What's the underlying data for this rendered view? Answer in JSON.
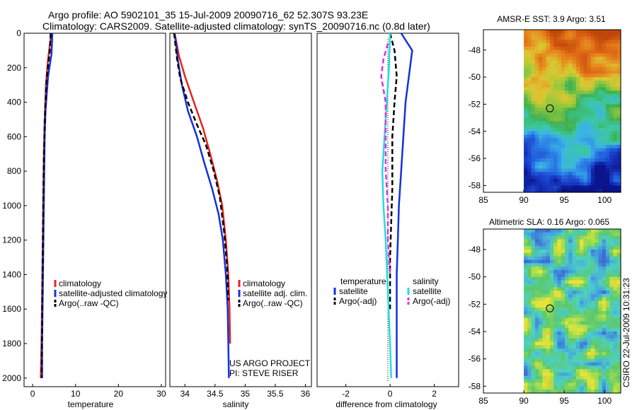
{
  "header": {
    "line1": "Argo profile: AO 5902101_35 15-Jul-2009 20090716_62 52.307S 93.23E",
    "line2": "Climatology: CARS2009. Satellite-adjusted climatology: synTS_20090716.nc (0.8d later)"
  },
  "footer": {
    "credit_vertical": "CSIRO 22-Jul-2009 10:31:23"
  },
  "colors": {
    "climatology": "#e8231c",
    "satellite": "#1330e0",
    "argo": "#000000",
    "sat_salinity": "#22dede",
    "argo_salinity_adj": "#e030e0"
  },
  "chart_data": [
    {
      "id": "temperature",
      "type": "line",
      "xlabel": "temperature",
      "ylabel": "",
      "xlim": [
        -2,
        31
      ],
      "ylim": [
        2050,
        0
      ],
      "xticks": [
        0,
        10,
        20,
        30
      ],
      "yticks": [
        0,
        200,
        400,
        600,
        800,
        1000,
        1200,
        1400,
        1600,
        1800,
        2000
      ],
      "legend": [
        "climatology",
        "satellite-adjusted climatology",
        "Argo(..raw -QC)"
      ],
      "series": [
        {
          "name": "climatology",
          "style": "solid",
          "color": "#e8231c",
          "x": [
            4.3,
            4.1,
            3.6,
            3.1,
            2.8,
            2.6,
            2.5,
            2.4,
            2.3,
            2.2,
            2.1,
            1.9
          ],
          "y": [
            0,
            50,
            150,
            300,
            500,
            700,
            900,
            1100,
            1300,
            1500,
            1750,
            2000
          ]
        },
        {
          "name": "satellite-adjusted climatology",
          "style": "solid",
          "color": "#1330e0",
          "x": [
            4.6,
            4.5,
            4.4,
            3.6,
            3.0,
            2.8,
            2.7,
            2.6,
            2.5,
            2.4,
            2.3,
            2.2,
            2.2
          ],
          "y": [
            0,
            60,
            120,
            250,
            450,
            600,
            800,
            1000,
            1200,
            1400,
            1600,
            1800,
            2000
          ]
        },
        {
          "name": "Argo(..raw -QC)",
          "style": "dash",
          "color": "#000000",
          "x": [
            4.2,
            4.0,
            3.3,
            3.0,
            2.8,
            2.6,
            2.5,
            2.4,
            2.3,
            2.2,
            2.1
          ],
          "y": [
            0,
            100,
            250,
            400,
            550,
            750,
            950,
            1200,
            1450,
            1700,
            2000
          ]
        }
      ]
    },
    {
      "id": "salinity",
      "type": "line",
      "xlabel": "salinity",
      "ylabel": "",
      "xlim": [
        33.75,
        36.1
      ],
      "ylim": [
        2050,
        0
      ],
      "xticks": [
        34,
        34.5,
        35,
        35.5,
        36
      ],
      "legend": [
        "climatology",
        "satellite adj. clim.",
        "Argo(..raw -QC)"
      ],
      "annotations": [
        "US ARGO PROJECT",
        "PI: STEVE RISER"
      ],
      "series": [
        {
          "name": "climatology",
          "style": "solid",
          "color": "#e8231c",
          "x": [
            33.83,
            33.9,
            34.0,
            34.15,
            34.3,
            34.42,
            34.53,
            34.62,
            34.68,
            34.72,
            34.74,
            34.75
          ],
          "y": [
            0,
            130,
            250,
            400,
            550,
            700,
            850,
            1000,
            1200,
            1400,
            1600,
            1800
          ]
        },
        {
          "name": "satellite adj. clim.",
          "style": "solid",
          "color": "#1330e0",
          "x": [
            33.82,
            33.85,
            33.88,
            33.95,
            34.05,
            34.2,
            34.32,
            34.45,
            34.56,
            34.63,
            34.68,
            34.71,
            34.72,
            34.73
          ],
          "y": [
            0,
            50,
            150,
            300,
            450,
            600,
            750,
            900,
            1050,
            1200,
            1400,
            1600,
            1800,
            2000
          ]
        },
        {
          "name": "Argo(..raw -QC)",
          "style": "dash",
          "color": "#000000",
          "x": [
            33.82,
            33.87,
            33.92,
            34.05,
            34.2,
            34.35,
            34.48,
            34.58,
            34.65,
            34.7,
            34.72
          ],
          "y": [
            0,
            150,
            260,
            400,
            530,
            650,
            800,
            950,
            1150,
            1350,
            1550
          ]
        }
      ]
    },
    {
      "id": "difference",
      "type": "line",
      "xlabel": "difference from climatology",
      "ylabel": "",
      "xlim": [
        -3.3,
        3.1
      ],
      "ylim": [
        2050,
        0
      ],
      "xticks": [
        -2,
        0,
        2
      ],
      "legend_groups": [
        {
          "title": "temperature",
          "entries": [
            "satellite",
            "Argo(-adj)"
          ]
        },
        {
          "title": "salinity",
          "entries": [
            "satellite",
            "Argo(-adj)"
          ]
        }
      ],
      "series": [
        {
          "name": "temperature satellite",
          "style": "solid",
          "color": "#1330e0",
          "x": [
            0.5,
            0.9,
            1.0,
            0.7,
            0.6,
            0.5,
            0.4,
            0.35,
            0.3,
            0.3,
            0.3
          ],
          "y": [
            0,
            80,
            100,
            400,
            600,
            800,
            1000,
            1200,
            1400,
            1700,
            2000
          ]
        },
        {
          "name": "temperature Argo(-adj)",
          "style": "dash",
          "color": "#000000",
          "x": [
            0.0,
            0.2,
            0.3,
            0.2,
            0.1,
            0.1,
            0.0,
            0.0
          ],
          "y": [
            0,
            100,
            250,
            400,
            600,
            900,
            1300,
            1600
          ]
        },
        {
          "name": "salinity satellite",
          "style": "solid",
          "color": "#22dede",
          "x": [
            0.0,
            -0.05,
            -0.15,
            -0.25,
            -0.35,
            -0.3,
            -0.2,
            -0.1,
            0.0,
            0.05
          ],
          "y": [
            0,
            200,
            400,
            600,
            800,
            1000,
            1200,
            1500,
            1800,
            2000
          ]
        },
        {
          "name": "salinity Argo(-adj)",
          "style": "dash",
          "color": "#e030e0",
          "x": [
            -0.1,
            -0.3,
            -0.4,
            -0.2,
            -0.2,
            -0.2,
            -0.1,
            -0.1,
            0.0
          ],
          "y": [
            60,
            150,
            250,
            400,
            600,
            800,
            1000,
            1200,
            1400
          ]
        }
      ]
    },
    {
      "id": "sst-map",
      "type": "heatmap",
      "title": "AMSR-E SST: 3.9 Argo: 3.51",
      "xlim": [
        85,
        102
      ],
      "ylim": [
        -58.5,
        -46.5
      ],
      "xticks": [
        85,
        90,
        95,
        100
      ],
      "yticks": [
        -48,
        -50,
        -52,
        -54,
        -56,
        -58
      ],
      "data_lon_range": [
        90,
        102
      ],
      "float_position": {
        "lon": 93.23,
        "lat": -52.307
      },
      "palette": "sst"
    },
    {
      "id": "sla-map",
      "type": "heatmap",
      "title": "Altimetric SLA: 0.16 Argo: 0.065",
      "xlim": [
        85,
        102
      ],
      "ylim": [
        -58.5,
        -46.5
      ],
      "xticks": [
        85,
        90,
        95,
        100
      ],
      "yticks": [
        -48,
        -50,
        -52,
        -54,
        -56,
        -58
      ],
      "data_lon_range": [
        90,
        102
      ],
      "float_position": {
        "lon": 93.23,
        "lat": -52.307
      },
      "palette": "sla"
    }
  ]
}
